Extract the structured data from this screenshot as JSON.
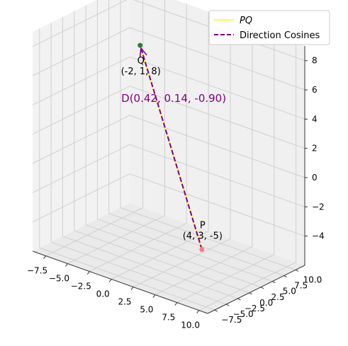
{
  "chart_data": {
    "type": "line3d",
    "title": "",
    "xlabel": "",
    "ylabel": "",
    "zlabel": "",
    "xlim": [
      -9,
      11
    ],
    "ylim": [
      -9,
      12
    ],
    "zlim": [
      -6,
      9
    ],
    "x_ticks": [
      -7.5,
      -5.0,
      -2.5,
      0.0,
      2.5,
      5.0,
      7.5,
      10.0
    ],
    "x_tick_labels": [
      "−7.5",
      "−5.0",
      "−2.5",
      "0.0",
      "2.5",
      "5.0",
      "7.5",
      "10.0"
    ],
    "y_ticks": [
      -7.5,
      -5.0,
      -2.5,
      0.0,
      2.5,
      5.0,
      7.5,
      10.0
    ],
    "y_tick_labels": [
      "−7.5",
      "−5.0",
      "−2.5",
      "0.0",
      "2.5",
      "5.0",
      "7.5",
      "10.0"
    ],
    "z_ticks": [
      -4,
      -2,
      0,
      2,
      4,
      6,
      8
    ],
    "z_tick_labels": [
      "−4",
      "−2",
      "0",
      "2",
      "4",
      "6",
      "8"
    ],
    "grid": true,
    "legend_position": "top-right",
    "points": [
      {
        "name": "P",
        "coords": [
          4,
          3,
          -5
        ],
        "label": "P",
        "coord_label": "(4, 3, -5)",
        "color": "#f08080"
      },
      {
        "name": "Q",
        "coords": [
          -2,
          1,
          8
        ],
        "label": "Q",
        "coord_label": "(-2, 1, 8)",
        "color": "#2e7d32"
      }
    ],
    "series": [
      {
        "name": "PQ",
        "style": "solid",
        "color": "#ffff33",
        "from": [
          4,
          3,
          -5
        ],
        "to": [
          -2,
          1,
          8
        ]
      },
      {
        "name": "Direction Cosines",
        "style": "dashed",
        "color": "#800080",
        "from": [
          4,
          3,
          -5
        ],
        "to": [
          -2,
          1,
          8
        ]
      }
    ],
    "annotation": {
      "text": "D(0.42, 0.14, -0.90)",
      "color": "#800080"
    }
  }
}
